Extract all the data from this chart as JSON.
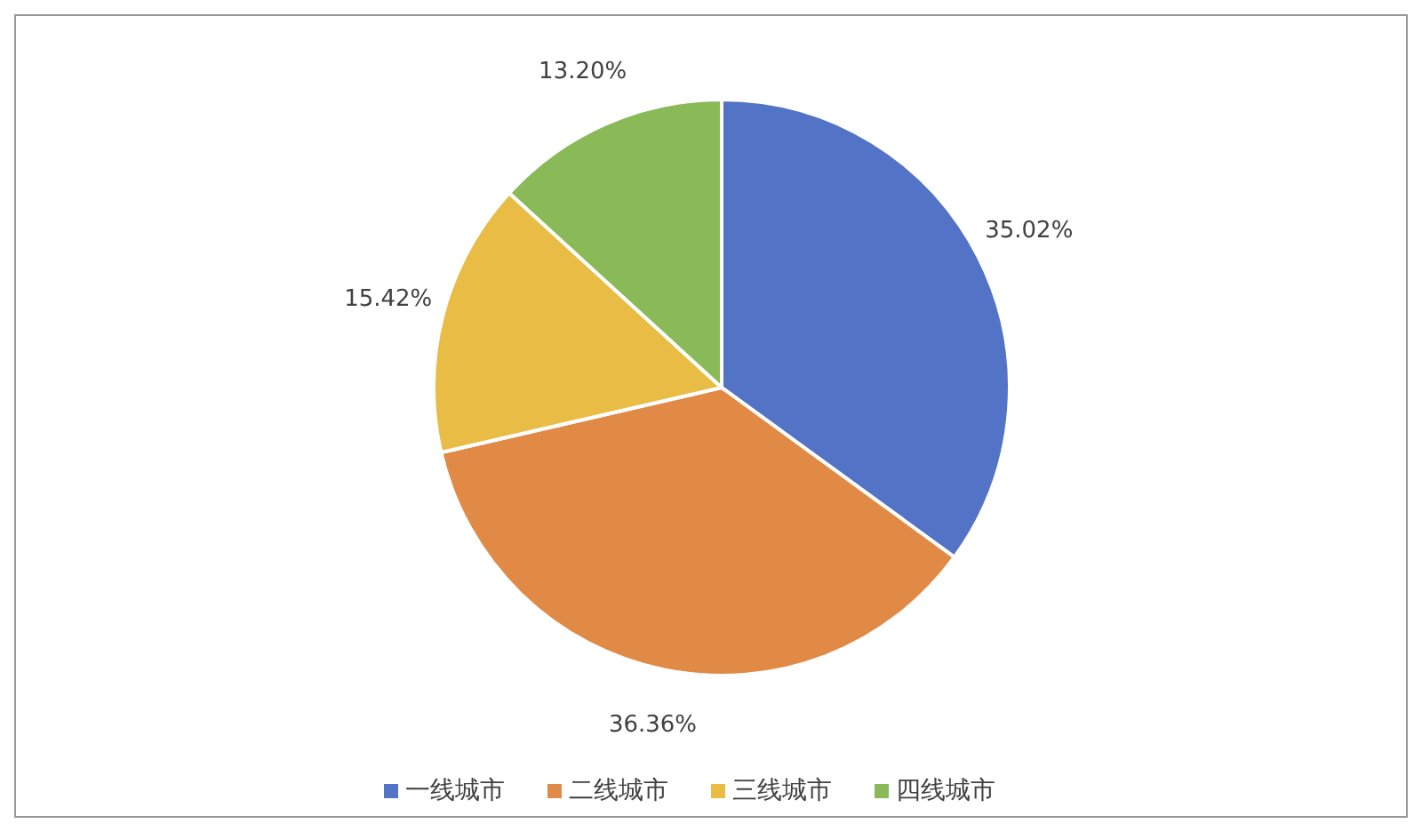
{
  "chart_data": {
    "type": "pie",
    "categories": [
      "一线城市",
      "二线城市",
      "三线城市",
      "四线城市"
    ],
    "values": [
      35.02,
      36.36,
      15.42,
      13.2
    ],
    "value_labels": [
      "35.02%",
      "36.36%",
      "15.42%",
      "13.20%"
    ],
    "colors": [
      "#5273c6",
      "#e08a45",
      "#e9bc45",
      "#89ba57"
    ],
    "legend": "bottom"
  }
}
